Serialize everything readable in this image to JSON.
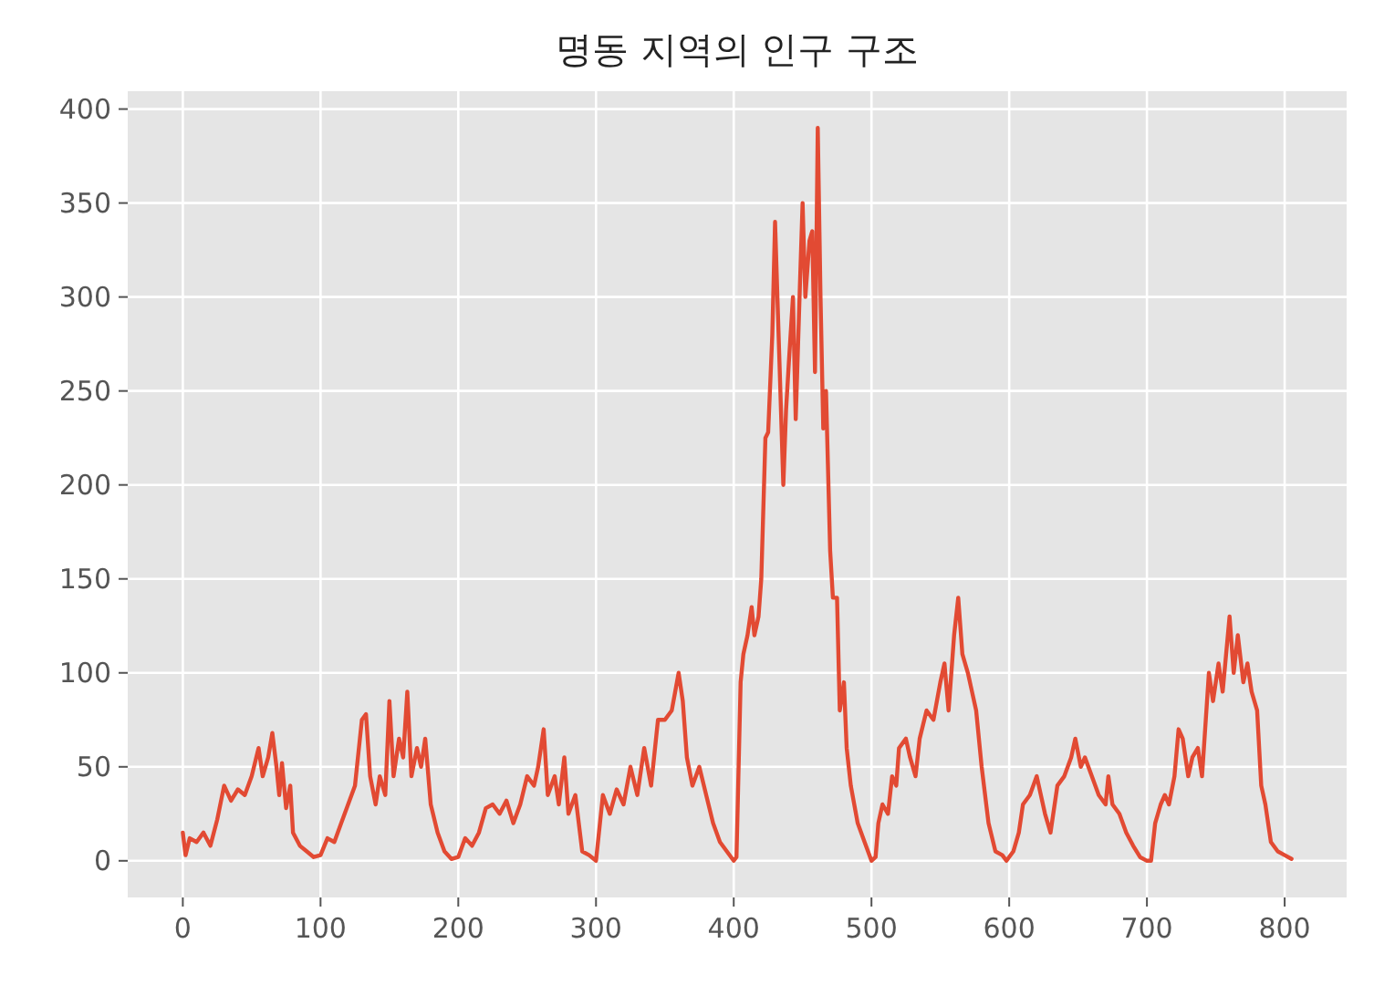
{
  "chart_data": {
    "type": "line",
    "title": "명동 지역의 인구 구조",
    "grid": true,
    "line_style": "solid",
    "marker": "none",
    "xlim": [
      -40,
      845
    ],
    "ylim": [
      -19.5,
      409.5
    ],
    "xticks": [
      0,
      100,
      200,
      300,
      400,
      500,
      600,
      700,
      800
    ],
    "yticks": [
      0,
      50,
      100,
      150,
      200,
      250,
      300,
      350,
      400
    ],
    "series": [
      {
        "color": "#e24a33",
        "x": [
          0,
          2,
          5,
          10,
          15,
          20,
          25,
          30,
          35,
          40,
          45,
          50,
          55,
          58,
          62,
          65,
          68,
          70,
          72,
          75,
          78,
          80,
          85,
          90,
          95,
          100,
          105,
          110,
          115,
          120,
          125,
          130,
          133,
          136,
          140,
          143,
          147,
          150,
          153,
          157,
          160,
          163,
          166,
          170,
          173,
          176,
          180,
          185,
          190,
          195,
          200,
          205,
          210,
          215,
          220,
          225,
          230,
          235,
          240,
          245,
          250,
          255,
          258,
          262,
          265,
          270,
          273,
          277,
          280,
          285,
          290,
          295,
          300,
          305,
          310,
          315,
          320,
          325,
          330,
          335,
          340,
          345,
          350,
          355,
          360,
          363,
          366,
          370,
          375,
          380,
          385,
          390,
          395,
          400,
          402,
          405,
          407,
          410,
          413,
          415,
          418,
          420,
          423,
          425,
          428,
          430,
          433,
          436,
          438,
          440,
          443,
          445,
          448,
          450,
          452,
          455,
          457,
          459,
          461,
          463,
          465,
          467,
          470,
          472,
          475,
          477,
          480,
          482,
          485,
          490,
          495,
          500,
          503,
          505,
          508,
          512,
          515,
          518,
          520,
          525,
          528,
          532,
          535,
          540,
          545,
          550,
          553,
          556,
          560,
          563,
          566,
          570,
          573,
          576,
          580,
          585,
          590,
          595,
          598,
          603,
          607,
          610,
          615,
          620,
          623,
          626,
          630,
          635,
          640,
          645,
          648,
          652,
          655,
          660,
          665,
          670,
          672,
          675,
          680,
          685,
          690,
          695,
          700,
          703,
          706,
          710,
          713,
          716,
          720,
          723,
          726,
          730,
          733,
          737,
          740,
          745,
          748,
          752,
          755,
          760,
          763,
          766,
          770,
          773,
          776,
          780,
          783,
          786,
          790,
          795,
          800,
          805
        ],
        "values": [
          15,
          3,
          12,
          10,
          15,
          8,
          22,
          40,
          32,
          38,
          35,
          45,
          60,
          45,
          55,
          68,
          50,
          35,
          52,
          28,
          40,
          15,
          8,
          5,
          2,
          3,
          12,
          10,
          20,
          30,
          40,
          75,
          78,
          45,
          30,
          45,
          35,
          85,
          45,
          65,
          55,
          90,
          45,
          60,
          50,
          65,
          30,
          15,
          5,
          1,
          2,
          12,
          8,
          15,
          28,
          30,
          25,
          32,
          20,
          30,
          45,
          40,
          50,
          70,
          35,
          45,
          30,
          55,
          25,
          35,
          5,
          3,
          0,
          35,
          25,
          38,
          30,
          50,
          35,
          60,
          40,
          75,
          75,
          80,
          100,
          85,
          55,
          40,
          50,
          35,
          20,
          10,
          5,
          0,
          2,
          95,
          110,
          120,
          135,
          120,
          130,
          150,
          225,
          228,
          280,
          340,
          270,
          200,
          240,
          265,
          300,
          235,
          305,
          350,
          300,
          330,
          335,
          260,
          390,
          300,
          230,
          250,
          165,
          140,
          140,
          80,
          95,
          60,
          40,
          20,
          10,
          0,
          2,
          20,
          30,
          25,
          45,
          40,
          60,
          65,
          55,
          45,
          65,
          80,
          75,
          95,
          105,
          80,
          120,
          140,
          110,
          100,
          90,
          80,
          50,
          20,
          5,
          3,
          0,
          5,
          15,
          30,
          35,
          45,
          35,
          25,
          15,
          40,
          45,
          55,
          65,
          50,
          55,
          45,
          35,
          30,
          45,
          30,
          25,
          15,
          8,
          2,
          0,
          0,
          20,
          30,
          35,
          30,
          45,
          70,
          65,
          45,
          55,
          60,
          45,
          100,
          85,
          105,
          90,
          130,
          100,
          120,
          95,
          105,
          90,
          80,
          40,
          30,
          10,
          5,
          3,
          1
        ]
      }
    ]
  }
}
